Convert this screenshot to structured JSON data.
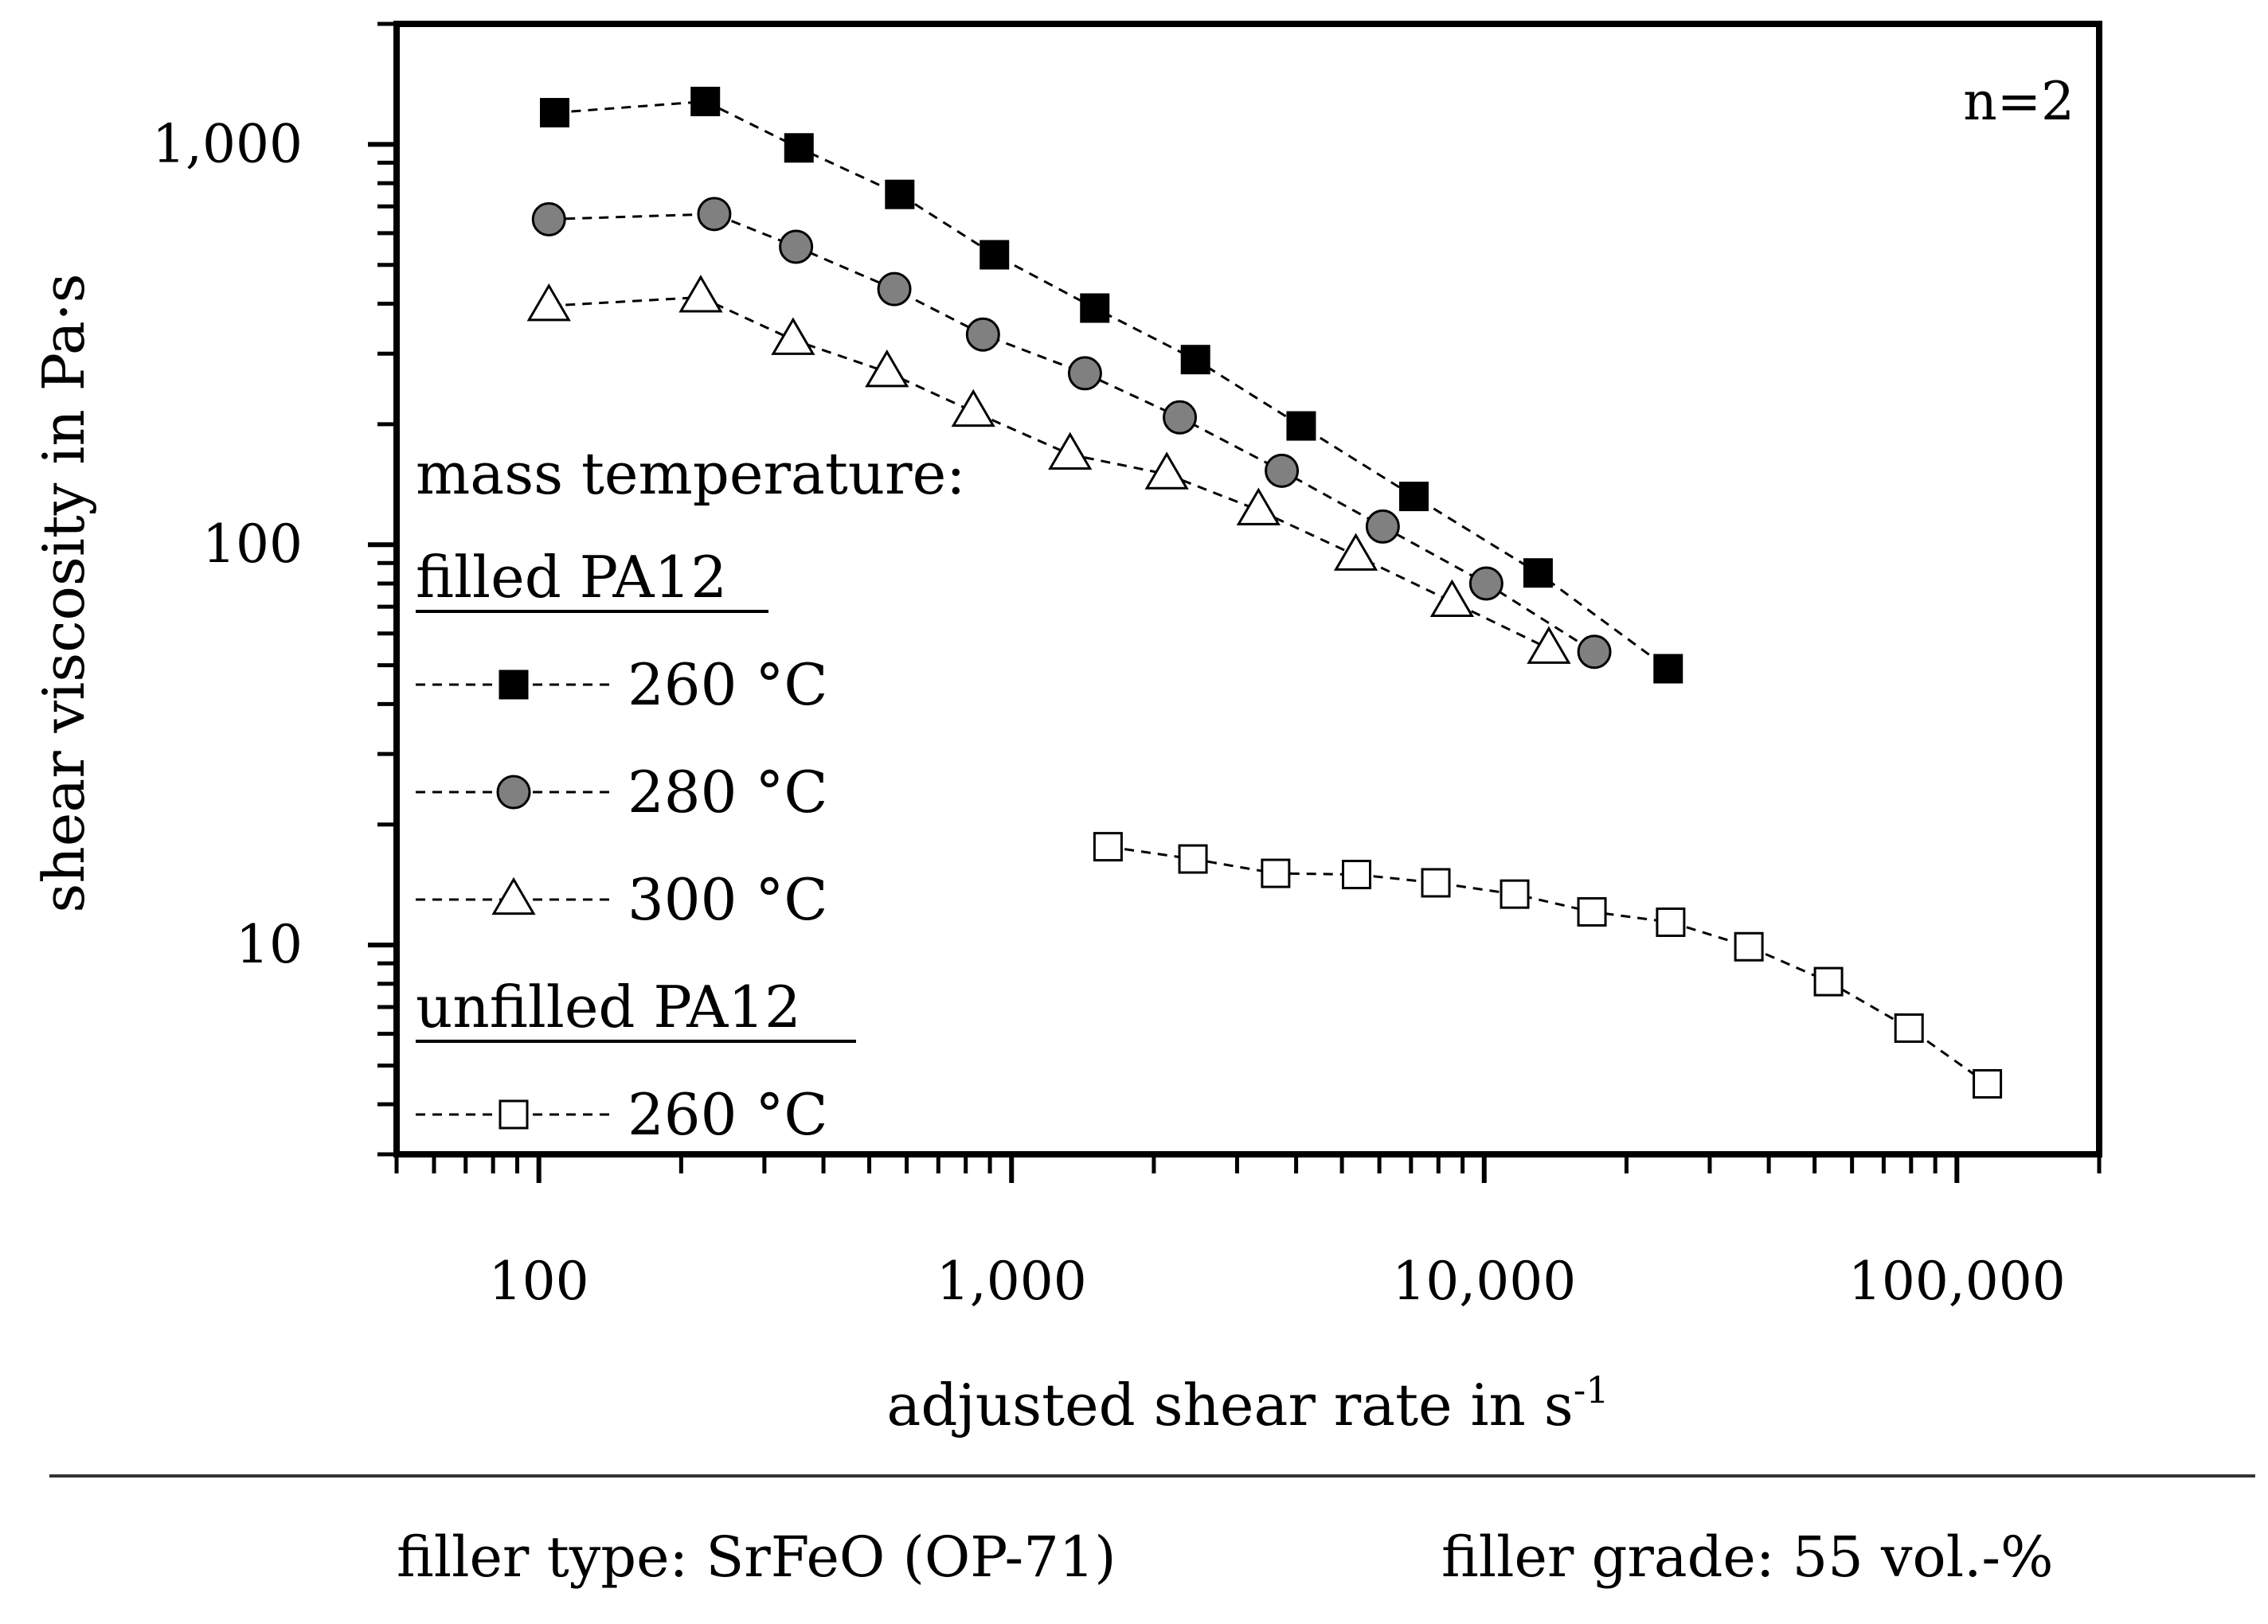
{
  "chart_data": {
    "type": "scatter",
    "scale": "log-log",
    "xlabel": "adjusted shear rate in s",
    "xlabel_superscript": "-1",
    "ylabel": "shear viscosity in Pa·s",
    "xlim": [
      50,
      200000
    ],
    "ylim": [
      3,
      2000
    ],
    "x_ticks": [
      {
        "value": 100,
        "label": "100"
      },
      {
        "value": 1000,
        "label": "1,000"
      },
      {
        "value": 10000,
        "label": "10,000"
      },
      {
        "value": 100000,
        "label": "100,000"
      }
    ],
    "y_ticks": [
      {
        "value": 10,
        "label": "10"
      },
      {
        "value": 100,
        "label": "100"
      },
      {
        "value": 1000,
        "label": "1,000"
      }
    ],
    "annotation": "n=2",
    "legend": {
      "title": "mass temperature:",
      "groups": [
        {
          "label": "filled PA12",
          "entries": [
            "260 °C",
            "280 °C",
            "300 °C"
          ]
        },
        {
          "label": "unfilled PA12",
          "entries": [
            "260 °C"
          ]
        }
      ]
    },
    "series": [
      {
        "name": "filled PA12 260 °C",
        "marker": "filled-square",
        "color": "#000000",
        "x": [
          108,
          225,
          355,
          580,
          920,
          1500,
          2450,
          4100,
          7100,
          13000,
          24500
        ],
        "y": [
          1200,
          1280,
          980,
          750,
          530,
          390,
          290,
          198,
          132,
          85,
          49
        ]
      },
      {
        "name": "filled PA12 280 °C",
        "marker": "filled-circle",
        "color": "#808080",
        "x": [
          105,
          235,
          350,
          565,
          870,
          1430,
          2270,
          3730,
          6100,
          10100,
          17100
        ],
        "y": [
          650,
          670,
          555,
          435,
          335,
          268,
          208,
          153,
          111,
          80,
          54
        ]
      },
      {
        "name": "filled PA12 300 °C",
        "marker": "open-triangle",
        "color": "#ffffff",
        "x": [
          105,
          220,
          345,
          545,
          830,
          1330,
          2130,
          3330,
          5350,
          8550,
          13700
        ],
        "y": [
          395,
          415,
          325,
          270,
          215,
          168,
          150,
          122,
          94,
          72,
          55
        ]
      },
      {
        "name": "unfilled PA12 260 °C",
        "marker": "open-square",
        "color": "#ffffff",
        "x": [
          1600,
          2420,
          3620,
          5370,
          7900,
          11600,
          16900,
          24800,
          36300,
          53500,
          79200,
          116000
        ],
        "y": [
          17.6,
          16.4,
          15.1,
          15.0,
          14.3,
          13.4,
          12.1,
          11.4,
          9.9,
          8.1,
          6.2,
          4.5
        ]
      }
    ]
  },
  "footer": {
    "filler_type": "filler type: SrFeO (OP-71)",
    "filler_grade": "filler grade: 55 vol.-%"
  }
}
